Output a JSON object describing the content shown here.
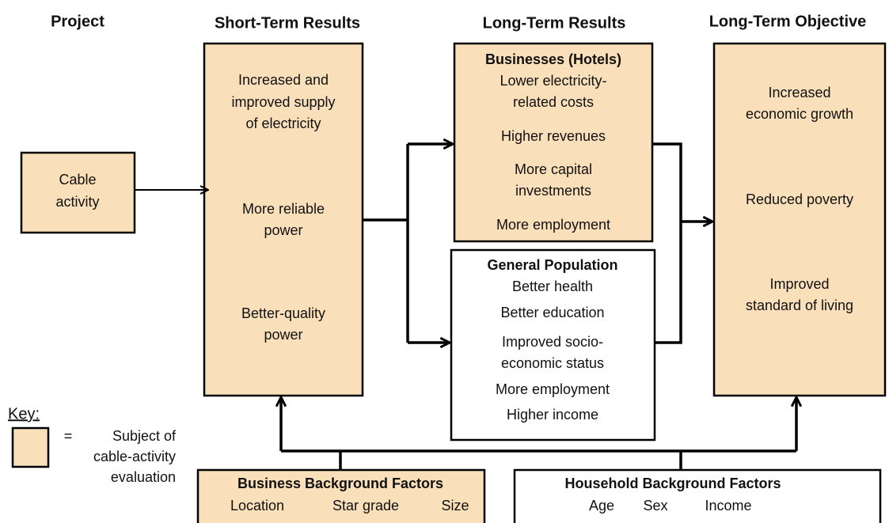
{
  "headers": [
    "Project",
    "Short-Term Results",
    "Long-Term Results",
    "Long-Term Objective"
  ],
  "project": {
    "lines": [
      "Cable",
      "activity"
    ]
  },
  "short_term": {
    "items": [
      [
        "Increased and",
        "improved supply",
        "of electricity"
      ],
      [
        "More reliable",
        "power"
      ],
      [
        "Better-quality",
        "power"
      ]
    ]
  },
  "businesses": {
    "title": "Businesses (Hotels)",
    "items": [
      [
        "Lower electricity-",
        "related costs"
      ],
      [
        "Higher revenues"
      ],
      [
        "More capital",
        "investments"
      ],
      [
        "More employment"
      ]
    ]
  },
  "general_population": {
    "title": "General Population",
    "items": [
      [
        "Better health"
      ],
      [
        "Better education"
      ],
      [
        "Improved socio-",
        "economic status"
      ],
      [
        "More employment"
      ],
      [
        "Higher income"
      ]
    ]
  },
  "objective": {
    "items": [
      [
        "Increased",
        "economic growth"
      ],
      [
        "Reduced poverty"
      ],
      [
        "Improved",
        "standard of living"
      ]
    ]
  },
  "key": {
    "label": "Key:",
    "equals": "=",
    "description": [
      "Subject of",
      "cable-activity",
      "evaluation"
    ]
  },
  "business_background": {
    "title": "Business Background Factors",
    "factors": [
      "Location",
      "Star grade",
      "Size"
    ]
  },
  "household_background": {
    "title": "Household Background Factors",
    "factors": [
      "Age",
      "Sex",
      "Income"
    ]
  }
}
